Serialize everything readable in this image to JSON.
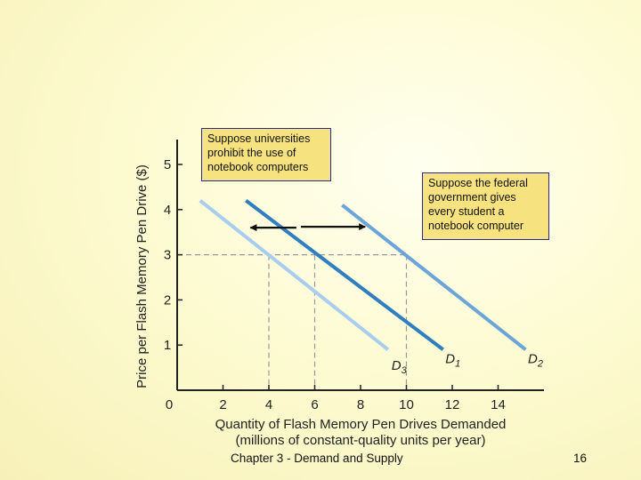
{
  "colors": {
    "background": "#fbf8c8",
    "d1": "#2f7fc0",
    "d2": "#6aa4d8",
    "d3": "#a8cdee",
    "callout_fill": "#f6e27e",
    "callout_border": "#2a2a8c",
    "dashed": "#999999",
    "axis": "#222222"
  },
  "annotations": {
    "left_callout": "Suppose universities prohibit the use of notebook computers",
    "right_callout": "Suppose the federal government gives every student a notebook computer"
  },
  "footer": {
    "chapter": "Chapter 3 - Demand and Supply",
    "page": "16"
  },
  "chart_data": {
    "type": "line",
    "title": "",
    "xlabel_line1": "Quantity of Flash Memory Pen Drives Demanded",
    "xlabel_line2": "(millions of constant-quality units per year)",
    "ylabel": "Price per Flash Memory Pen Drive ($)",
    "xlim": [
      0,
      16
    ],
    "ylim": [
      0,
      5.5
    ],
    "xticks": [
      2,
      4,
      6,
      8,
      10,
      12,
      14
    ],
    "yticks": [
      1,
      2,
      3,
      4,
      5
    ],
    "origin_label": "0",
    "grid": false,
    "series": [
      {
        "name": "D",
        "sub": "1",
        "color": "#2f7fc0",
        "points": [
          [
            3,
            4.2
          ],
          [
            11.6,
            0.9
          ]
        ],
        "label_at": [
          11.7,
          0.6
        ]
      },
      {
        "name": "D",
        "sub": "2",
        "color": "#6aa4d8",
        "points": [
          [
            7.2,
            4.1
          ],
          [
            15.2,
            0.9
          ]
        ],
        "label_at": [
          15.3,
          0.6
        ]
      },
      {
        "name": "D",
        "sub": "3",
        "color": "#a8cdee",
        "points": [
          [
            1,
            4.2
          ],
          [
            9.2,
            0.9
          ]
        ],
        "label_at": [
          9.35,
          0.45
        ]
      }
    ],
    "reference": {
      "price": 3,
      "quantities": [
        4,
        6,
        10
      ]
    },
    "shift_arrows": [
      {
        "direction": "left",
        "from": [
          5.2,
          3.6
        ],
        "to": [
          3.2,
          3.6
        ]
      },
      {
        "direction": "right",
        "from": [
          5.4,
          3.62
        ],
        "to": [
          8.2,
          3.62
        ]
      }
    ]
  }
}
